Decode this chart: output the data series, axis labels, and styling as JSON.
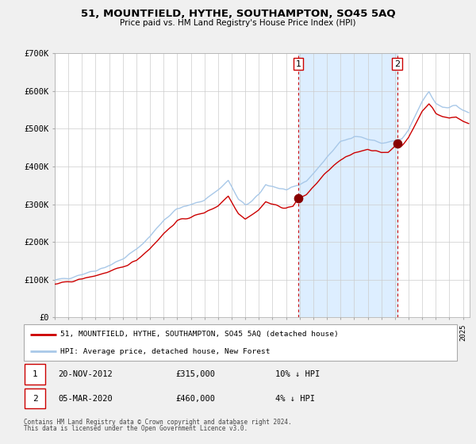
{
  "title": "51, MOUNTFIELD, HYTHE, SOUTHAMPTON, SO45 5AQ",
  "subtitle": "Price paid vs. HM Land Registry's House Price Index (HPI)",
  "bg_color": "#f0f0f0",
  "plot_bg_color": "#ffffff",
  "grid_color": "#cccccc",
  "hpi_color": "#a8c8e8",
  "price_color": "#cc0000",
  "highlight_bg": "#ddeeff",
  "sale1_date": "20-NOV-2012",
  "sale1_price": 315000,
  "sale1_pct": "10%",
  "sale2_date": "05-MAR-2020",
  "sale2_price": 460000,
  "sale2_pct": "4%",
  "legend_label1": "51, MOUNTFIELD, HYTHE, SOUTHAMPTON, SO45 5AQ (detached house)",
  "legend_label2": "HPI: Average price, detached house, New Forest",
  "footnote1": "Contains HM Land Registry data © Crown copyright and database right 2024.",
  "footnote2": "This data is licensed under the Open Government Licence v3.0.",
  "ylim": [
    0,
    700000
  ],
  "yticks": [
    0,
    100000,
    200000,
    300000,
    400000,
    500000,
    600000,
    700000
  ],
  "ytick_labels": [
    "£0",
    "£100K",
    "£200K",
    "£300K",
    "£400K",
    "£500K",
    "£600K",
    "£700K"
  ],
  "xlim_start": 1995.0,
  "xlim_end": 2025.5,
  "sale1_x": 2012.9,
  "sale2_x": 2020.17
}
